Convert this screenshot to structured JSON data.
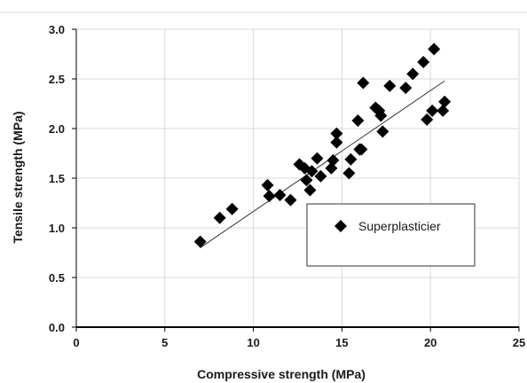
{
  "chart_data": {
    "type": "scatter",
    "xlabel": "Compressive strength  (MPa)",
    "ylabel": "Tensile strength (MPa)",
    "xlim": [
      0,
      25
    ],
    "ylim": [
      0,
      3.0
    ],
    "x_ticks": [
      "0",
      "5",
      "10",
      "15",
      "20",
      "25"
    ],
    "y_ticks": [
      "0.0",
      "0.5",
      "1.0",
      "1.5",
      "2.0",
      "2.5",
      "3.0"
    ],
    "grid": true,
    "legend_position": "center-right",
    "series": [
      {
        "name": "Superplasticier",
        "marker": "diamond",
        "color": "#000000",
        "x": [
          7.0,
          8.1,
          8.8,
          10.8,
          10.9,
          11.5,
          12.1,
          12.6,
          12.9,
          13.0,
          13.2,
          13.3,
          13.6,
          13.8,
          14.4,
          14.5,
          14.7,
          14.7,
          15.4,
          15.5,
          15.9,
          16.0,
          16.1,
          16.2,
          16.9,
          17.1,
          17.2,
          17.3,
          17.7,
          18.6,
          19.0,
          19.6,
          19.8,
          20.1,
          20.2,
          20.7,
          20.8
        ],
        "y": [
          0.86,
          1.1,
          1.19,
          1.43,
          1.32,
          1.33,
          1.28,
          1.64,
          1.6,
          1.48,
          1.38,
          1.57,
          1.7,
          1.52,
          1.6,
          1.68,
          1.86,
          1.95,
          1.55,
          1.69,
          2.08,
          1.79,
          1.79,
          2.46,
          2.21,
          2.18,
          2.13,
          1.97,
          2.43,
          2.41,
          2.55,
          2.67,
          2.09,
          2.18,
          2.8,
          2.18,
          2.27
        ]
      }
    ],
    "trendline": {
      "type": "linear",
      "x": [
        7.0,
        20.8
      ],
      "y": [
        0.8,
        2.48
      ]
    }
  }
}
